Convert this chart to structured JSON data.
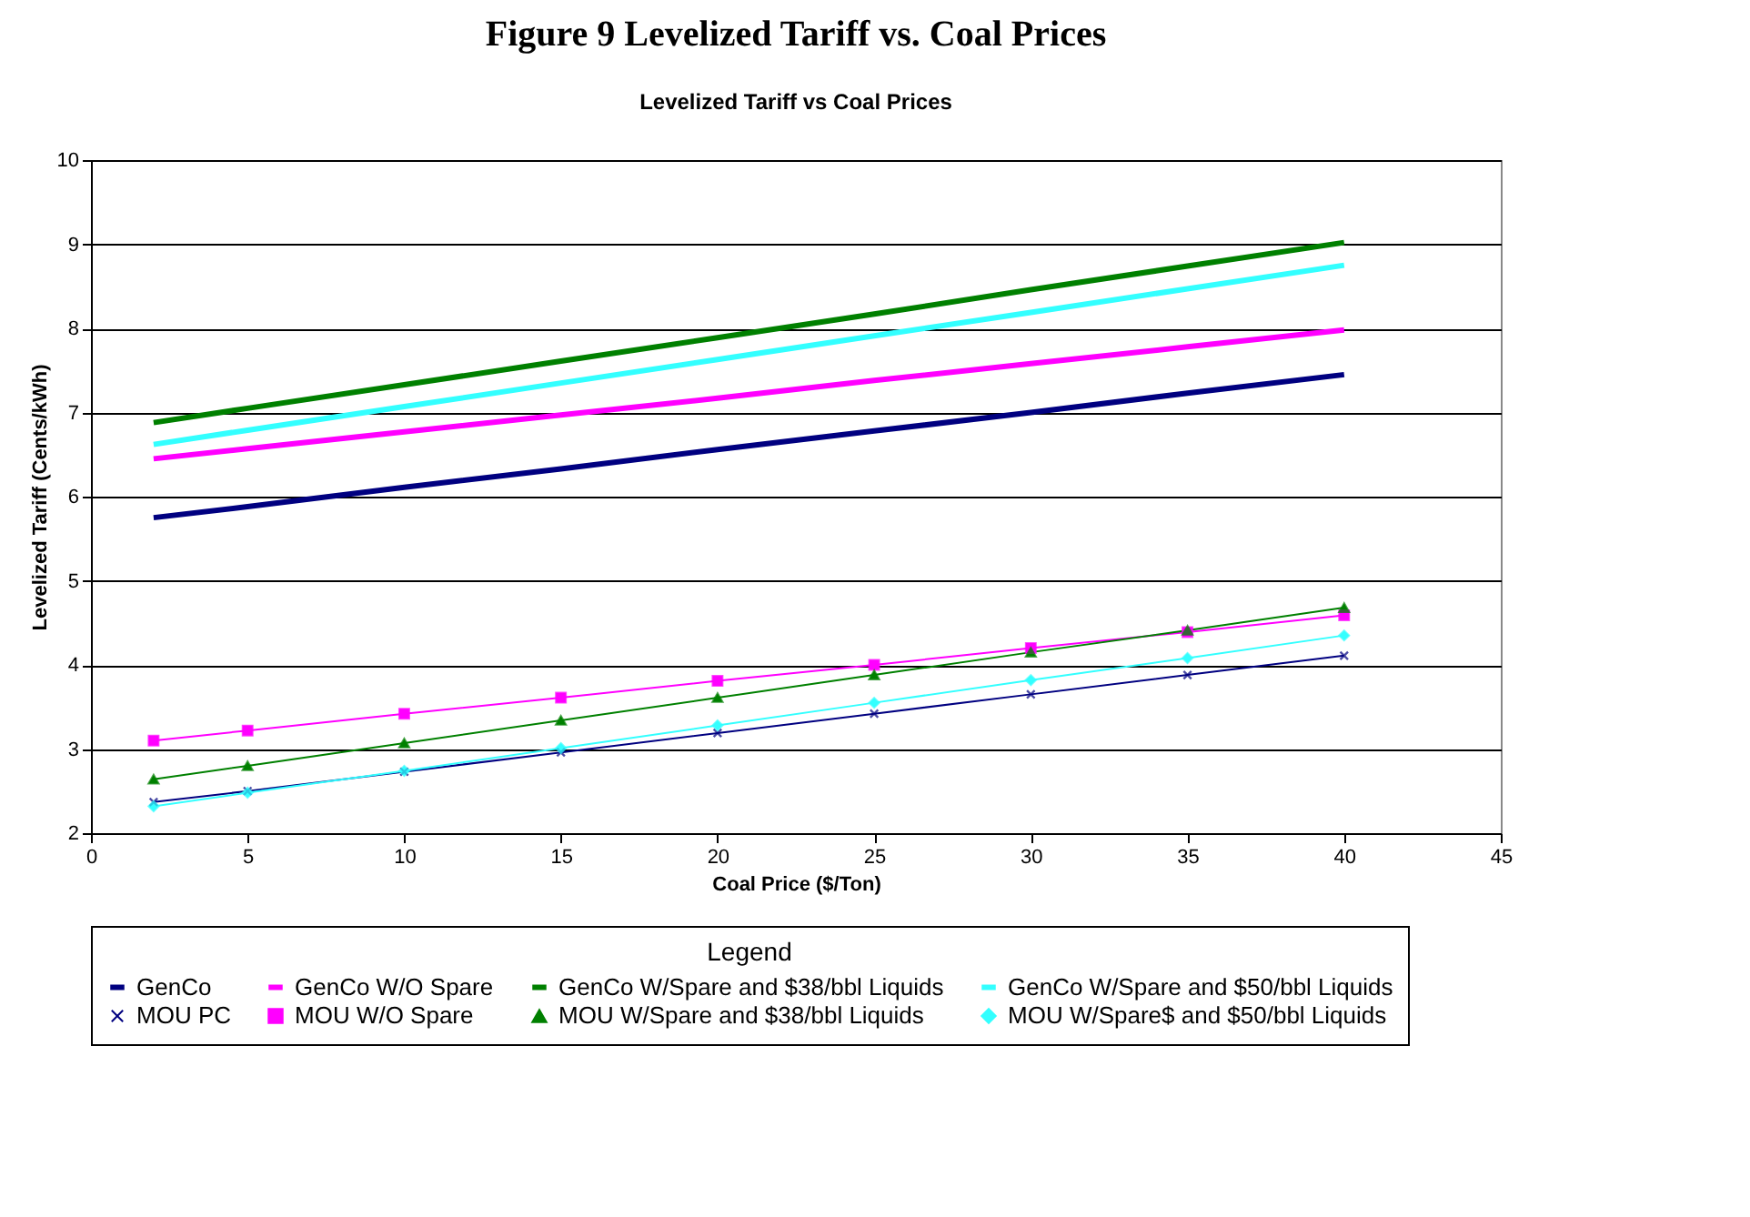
{
  "chart_data": {
    "type": "line",
    "title": "Figure 9 Levelized Tariff vs. Coal Prices",
    "subtitle": "Levelized Tariff vs Coal Prices",
    "xlabel": "Coal Price ($/Ton)",
    "ylabel": "Levelized Tariff (Cents/kWh)",
    "legend_title": "Legend",
    "x": [
      2,
      5,
      10,
      15,
      20,
      25,
      30,
      35,
      40
    ],
    "series": [
      {
        "name": "GenCo",
        "color": "#000080",
        "marker": "none",
        "values": [
          5.75,
          5.88,
          6.11,
          6.33,
          6.56,
          6.78,
          7.0,
          7.23,
          7.45
        ]
      },
      {
        "name": "GenCo W/O Spare",
        "color": "#ff00ff",
        "marker": "none",
        "values": [
          6.45,
          6.57,
          6.77,
          6.97,
          7.17,
          7.38,
          7.58,
          7.78,
          7.98
        ]
      },
      {
        "name": "GenCo W/Spare and $38/bbl Liquids",
        "color": "#008000",
        "marker": "none",
        "values": [
          6.88,
          7.05,
          7.33,
          7.61,
          7.89,
          8.17,
          8.46,
          8.74,
          9.02
        ]
      },
      {
        "name": "GenCo W/Spare and $50/bbl Liquids",
        "color": "#33ffff",
        "marker": "none",
        "values": [
          6.62,
          6.79,
          7.07,
          7.35,
          7.63,
          7.91,
          8.19,
          8.47,
          8.75
        ]
      },
      {
        "name": "MOU PC",
        "color": "#000080",
        "marker": "cross",
        "values": [
          2.37,
          2.5,
          2.73,
          2.96,
          3.19,
          3.42,
          3.65,
          3.88,
          4.11
        ]
      },
      {
        "name": "MOU W/O Spare",
        "color": "#ff00ff",
        "marker": "square",
        "values": [
          3.1,
          3.22,
          3.42,
          3.61,
          3.81,
          4.0,
          4.2,
          4.39,
          4.59
        ]
      },
      {
        "name": "MOU W/Spare and $38/bbl Liquids",
        "color": "#008000",
        "marker": "triangle",
        "values": [
          2.64,
          2.8,
          3.07,
          3.34,
          3.61,
          3.88,
          4.15,
          4.41,
          4.68
        ]
      },
      {
        "name": "MOU W/Spare$ and $50/bbl Liquids",
        "color": "#33ffff",
        "marker": "diamond",
        "values": [
          2.32,
          2.48,
          2.74,
          3.01,
          3.28,
          3.55,
          3.82,
          4.08,
          4.35
        ]
      }
    ],
    "xlim": [
      0,
      45
    ],
    "xticks": [
      0,
      5,
      10,
      15,
      20,
      25,
      30,
      35,
      40,
      45
    ],
    "ylim": [
      2,
      10
    ],
    "yticks": [
      2,
      3,
      4,
      5,
      6,
      7,
      8,
      9,
      10
    ],
    "grid": "y",
    "legend": "bottom",
    "line_style": "solid"
  }
}
